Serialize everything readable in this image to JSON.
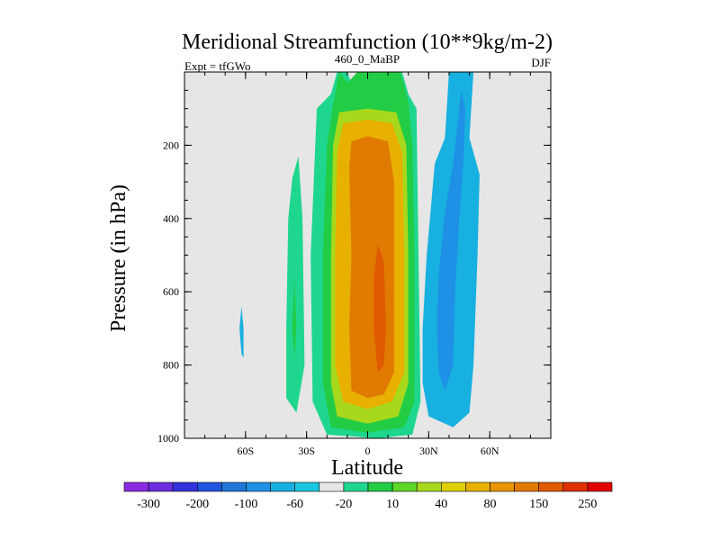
{
  "chart_data": {
    "type": "heatmap",
    "title": "Meridional Streamfunction (10**9kg/m-2)",
    "left_label": "Expt = tfGWo",
    "center_label": "460_0_MaBP",
    "right_label": "DJF",
    "xlabel": "Latitude",
    "ylabel": "Pressure (in hPa)",
    "xlim": [
      -90,
      90
    ],
    "ylim": [
      1000,
      0
    ],
    "xticks": [
      {
        "value": -60,
        "label": "60S"
      },
      {
        "value": -30,
        "label": "30S"
      },
      {
        "value": 0,
        "label": "0"
      },
      {
        "value": 30,
        "label": "30N"
      },
      {
        "value": 60,
        "label": "60N"
      }
    ],
    "yticks": [
      {
        "value": 200,
        "label": "200"
      },
      {
        "value": 400,
        "label": "400"
      },
      {
        "value": 600,
        "label": "600"
      },
      {
        "value": 800,
        "label": "800"
      },
      {
        "value": 1000,
        "label": "1000"
      }
    ],
    "background_color": "#e6e6e6",
    "colorbar": {
      "levels": [
        "-300",
        "-200",
        "-100",
        "-60",
        "-20",
        "10",
        "40",
        "80",
        "150",
        "250"
      ],
      "colors": [
        "#8a2be2",
        "#6a2ee0",
        "#3333dd",
        "#2255dd",
        "#1f77d8",
        "#1e90e6",
        "#17b0e0",
        "#19c6e0",
        "#e6e6e6",
        "#1fd68f",
        "#22cc44",
        "#5fd62a",
        "#a8d81c",
        "#e0d000",
        "#e8b000",
        "#e89400",
        "#e07a00",
        "#e05a00",
        "#e03000",
        "#e00000"
      ]
    },
    "regions": [
      {
        "name": "positive-10",
        "level": 10,
        "color": "#1fd68f",
        "points": [
          [
            -10,
            0
          ],
          [
            -8,
            30
          ],
          [
            -5,
            0
          ],
          [
            -1,
            0
          ],
          [
            1,
            30
          ],
          [
            3,
            0
          ],
          [
            5,
            30
          ],
          [
            8,
            0
          ],
          [
            17,
            0
          ],
          [
            20,
            60
          ],
          [
            24,
            100
          ],
          [
            25,
            500
          ],
          [
            26,
            900
          ],
          [
            22,
            990
          ],
          [
            5,
            1000
          ],
          [
            -20,
            990
          ],
          [
            -27,
            900
          ],
          [
            -28,
            500
          ],
          [
            -25,
            100
          ],
          [
            -18,
            60
          ],
          [
            -15,
            0
          ]
        ]
      },
      {
        "name": "positive-40",
        "level": 40,
        "color": "#22cc44",
        "points": [
          [
            -14,
            0
          ],
          [
            -10,
            30
          ],
          [
            -5,
            0
          ],
          [
            5,
            0
          ],
          [
            16,
            0
          ],
          [
            20,
            80
          ],
          [
            22,
            200
          ],
          [
            23,
            500
          ],
          [
            23,
            900
          ],
          [
            18,
            970
          ],
          [
            0,
            985
          ],
          [
            -18,
            970
          ],
          [
            -22,
            850
          ],
          [
            -22,
            500
          ],
          [
            -20,
            200
          ],
          [
            -17,
            90
          ]
        ]
      },
      {
        "name": "positive-80",
        "level": 80,
        "color": "#a8d81c",
        "points": [
          [
            -14,
            110
          ],
          [
            0,
            100
          ],
          [
            14,
            110
          ],
          [
            19,
            200
          ],
          [
            20,
            500
          ],
          [
            20,
            850
          ],
          [
            15,
            940
          ],
          [
            0,
            960
          ],
          [
            -15,
            940
          ],
          [
            -18,
            850
          ],
          [
            -18,
            500
          ],
          [
            -17,
            200
          ]
        ]
      },
      {
        "name": "positive-150",
        "level": 150,
        "color": "#e8b000",
        "points": [
          [
            -12,
            140
          ],
          [
            0,
            130
          ],
          [
            12,
            140
          ],
          [
            17,
            220
          ],
          [
            18,
            500
          ],
          [
            18,
            820
          ],
          [
            12,
            900
          ],
          [
            0,
            920
          ],
          [
            -12,
            900
          ],
          [
            -16,
            800
          ],
          [
            -16,
            500
          ],
          [
            -15,
            220
          ]
        ]
      },
      {
        "name": "positive-250",
        "level": 250,
        "color": "#e07a00",
        "points": [
          [
            -8,
            190
          ],
          [
            0,
            175
          ],
          [
            10,
            190
          ],
          [
            13,
            300
          ],
          [
            13,
            600
          ],
          [
            13,
            820
          ],
          [
            8,
            880
          ],
          [
            0,
            890
          ],
          [
            -8,
            870
          ],
          [
            -9,
            700
          ],
          [
            -8,
            500
          ],
          [
            -9,
            260
          ]
        ]
      },
      {
        "name": "positive-300",
        "level": 300,
        "color": "#e05a00",
        "points": [
          [
            5,
            470
          ],
          [
            8,
            520
          ],
          [
            9,
            700
          ],
          [
            8,
            800
          ],
          [
            5,
            820
          ],
          [
            3,
            700
          ],
          [
            3,
            560
          ]
        ]
      },
      {
        "name": "positive-sh-10",
        "level": 10,
        "color": "#1fd68f",
        "points": [
          [
            -37,
            290
          ],
          [
            -34,
            230
          ],
          [
            -32,
            400
          ],
          [
            -31,
            800
          ],
          [
            -35,
            930
          ],
          [
            -40,
            890
          ],
          [
            -40,
            700
          ],
          [
            -39,
            400
          ]
        ]
      },
      {
        "name": "positive-sh-40",
        "level": 40,
        "color": "#22cc44",
        "points": [
          [
            -36,
            560
          ],
          [
            -35,
            700
          ],
          [
            -36,
            780
          ],
          [
            -37,
            700
          ]
        ]
      },
      {
        "name": "negative-minus-20",
        "level": -20,
        "color": "#17b0e0",
        "points": [
          [
            40,
            0
          ],
          [
            52,
            0
          ],
          [
            50,
            180
          ],
          [
            55,
            280
          ],
          [
            54,
            500
          ],
          [
            52,
            800
          ],
          [
            50,
            930
          ],
          [
            42,
            970
          ],
          [
            30,
            940
          ],
          [
            27,
            850
          ],
          [
            27,
            700
          ],
          [
            29,
            500
          ],
          [
            33,
            250
          ],
          [
            38,
            180
          ]
        ]
      },
      {
        "name": "negative-minus-60",
        "level": -60,
        "color": "#1e90e6",
        "points": [
          [
            46,
            50
          ],
          [
            48,
            100
          ],
          [
            47,
            250
          ],
          [
            45,
            400
          ],
          [
            43,
            600
          ],
          [
            42,
            800
          ],
          [
            38,
            870
          ],
          [
            35,
            820
          ],
          [
            34,
            700
          ],
          [
            35,
            550
          ],
          [
            38,
            380
          ],
          [
            42,
            250
          ]
        ]
      },
      {
        "name": "negative-sh-minus-20",
        "level": -20,
        "color": "#17b0e0",
        "points": [
          [
            -62,
            640
          ],
          [
            -61,
            700
          ],
          [
            -61,
            780
          ],
          [
            -62,
            770
          ],
          [
            -63,
            700
          ]
        ]
      }
    ]
  }
}
